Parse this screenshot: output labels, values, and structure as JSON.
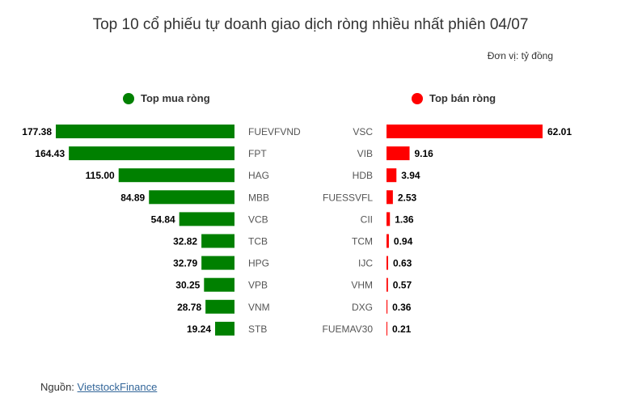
{
  "title": "Top 10 cổ phiếu tự doanh giao dịch ròng nhiều nhất phiên 04/07",
  "unit_label": "Đơn vị: tỷ đồng",
  "source": {
    "prefix": "Nguồn: ",
    "link_text": "VietstockFinance"
  },
  "colors": {
    "buy": "#008000",
    "sell": "#ff0000"
  },
  "chart_data": [
    {
      "type": "bar",
      "orientation": "horizontal",
      "title": "Top mua ròng",
      "categories": [
        "FUEVFVND",
        "FPT",
        "HAG",
        "MBB",
        "VCB",
        "TCB",
        "HPG",
        "VPB",
        "VNM",
        "STB"
      ],
      "values": [
        177.38,
        164.43,
        115.0,
        84.89,
        54.84,
        32.82,
        32.79,
        30.25,
        28.78,
        19.24
      ],
      "labels": [
        "177.38",
        "164.43",
        "115.00",
        "84.89",
        "54.84",
        "32.82",
        "32.79",
        "30.25",
        "28.78",
        "19.24"
      ],
      "color": "#008000",
      "direction": "right-to-left"
    },
    {
      "type": "bar",
      "orientation": "horizontal",
      "title": "Top bán ròng",
      "categories": [
        "VSC",
        "VIB",
        "HDB",
        "FUESSVFL",
        "CII",
        "TCM",
        "IJC",
        "VHM",
        "DXG",
        "FUEMAV30"
      ],
      "values": [
        62.01,
        9.16,
        3.94,
        2.53,
        1.36,
        0.94,
        0.63,
        0.57,
        0.36,
        0.21
      ],
      "labels": [
        "62.01",
        "9.16",
        "3.94",
        "2.53",
        "1.36",
        "0.94",
        "0.63",
        "0.57",
        "0.36",
        "0.21"
      ],
      "color": "#ff0000",
      "direction": "left-to-right"
    }
  ]
}
